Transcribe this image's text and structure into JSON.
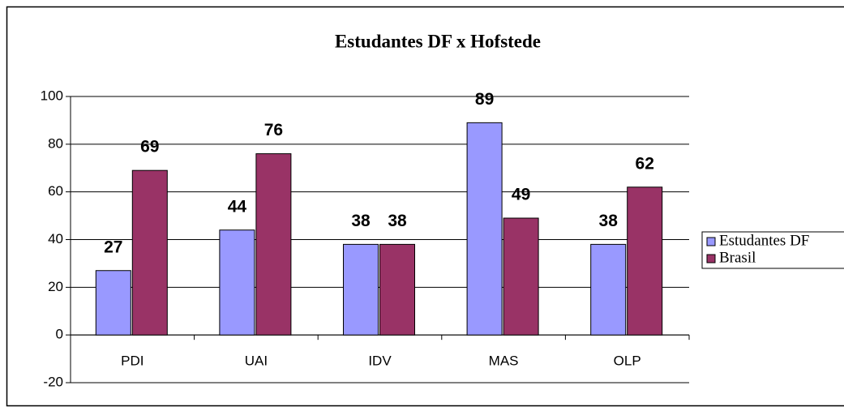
{
  "chart_data": {
    "type": "bar",
    "title": "Estudantes DF x Hofstede",
    "categories": [
      "PDI",
      "UAI",
      "IDV",
      "MAS",
      "OLP"
    ],
    "series": [
      {
        "name": "Estudantes DF",
        "color": "#9999ff",
        "values": [
          27,
          44,
          38,
          89,
          38
        ]
      },
      {
        "name": "Brasil",
        "color": "#993366",
        "values": [
          69,
          76,
          38,
          49,
          62
        ]
      }
    ],
    "ylim": [
      -20,
      100
    ],
    "yticks": [
      -20,
      0,
      20,
      40,
      60,
      80,
      100
    ],
    "grid": true,
    "legend": "right"
  }
}
